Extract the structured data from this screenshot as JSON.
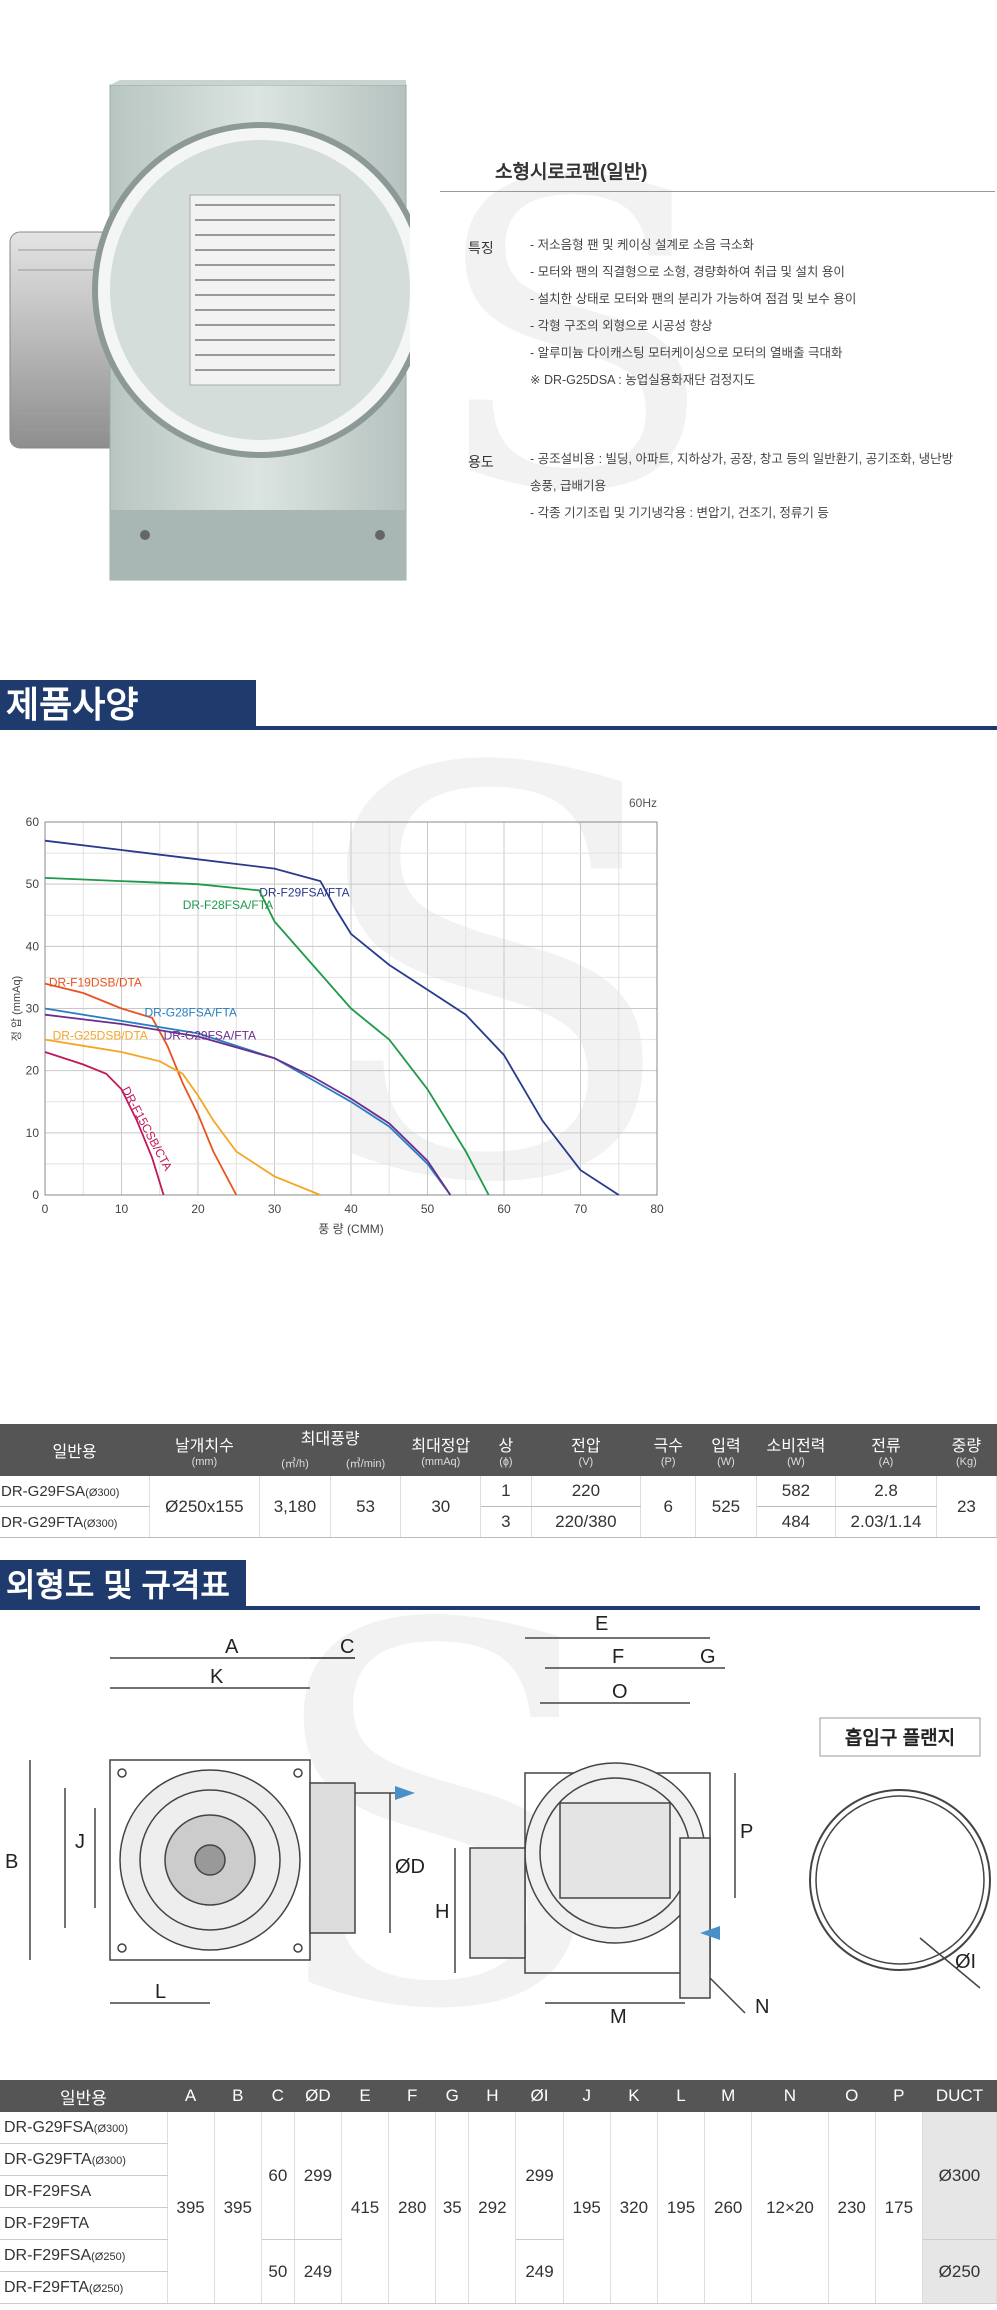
{
  "product": {
    "title": "소형시로코팬(일반)",
    "features_heading": "특징",
    "features": [
      "- 저소음형 팬 및 케이싱 설계로 소음 극소화",
      "- 모터와 팬의 직결형으로 소형, 경량화하여 취급 및 설치 용이",
      "- 설치한 상태로 모터와 팬의 분리가 가능하여 점검 및 보수 용이",
      "- 각형 구조의 외형으로 시공성 향상",
      "- 알루미늄 다이캐스팅 모터케이싱으로 모터의 열배출 극대화",
      "※ DR-G25DSA : 농업실용화재단 검정지도"
    ],
    "uses_heading": "용도",
    "uses": [
      "- 공조설비용 : 빌딩, 아파트, 지하상가, 공장, 창고 등의 일반환기, 공기조화, 냉난방",
      "송풍, 급배기용",
      "- 각종 기기조립 및 기기냉각용 : 변압기, 건조기, 정류기 등"
    ]
  },
  "sections": {
    "spec": "제품사양",
    "outline": "외형도 및 규격표"
  },
  "chart_data": {
    "type": "line",
    "title": "",
    "freq_label": "60Hz",
    "xlabel": "풍 량 (CMM)",
    "ylabel": "정 압 (mmAq)",
    "xlim": [
      0,
      80
    ],
    "ylim": [
      0,
      60
    ],
    "xticks": [
      0,
      10,
      20,
      30,
      40,
      50,
      60,
      70,
      80
    ],
    "yticks": [
      0,
      10,
      20,
      30,
      40,
      50,
      60
    ],
    "grid": true,
    "series": [
      {
        "name": "DR-F29FSA/FTA",
        "color": "#2a3a8c",
        "x": [
          0,
          10,
          20,
          30,
          36,
          38,
          40,
          45,
          50,
          55,
          60,
          65,
          70,
          75
        ],
        "y": [
          57,
          55.5,
          54,
          52.5,
          50.5,
          46,
          42,
          37,
          33,
          29,
          22.5,
          12,
          4,
          0
        ]
      },
      {
        "name": "DR-F28FSA/FTA",
        "color": "#1e9a4a",
        "x": [
          0,
          10,
          20,
          28,
          30,
          35,
          40,
          45,
          50,
          55,
          58
        ],
        "y": [
          51,
          50.5,
          50,
          49,
          44,
          37,
          30,
          25,
          17,
          7,
          0
        ]
      },
      {
        "name": "DR-F19DSB/DTA",
        "color": "#e8531f",
        "x": [
          0,
          5,
          10,
          14,
          16,
          18,
          20,
          22,
          25
        ],
        "y": [
          34,
          32.5,
          30,
          28.5,
          24,
          18,
          13,
          7,
          0
        ]
      },
      {
        "name": "DR-G28FSA/FTA",
        "color": "#2a7fc0",
        "x": [
          0,
          10,
          20,
          30,
          35,
          40,
          45,
          50,
          53
        ],
        "y": [
          30,
          28,
          26,
          22,
          18.5,
          15,
          11,
          5,
          0
        ]
      },
      {
        "name": "DR-G29FSA/FTA",
        "color": "#6a2f8e",
        "x": [
          0,
          10,
          20,
          30,
          35,
          40,
          45,
          50,
          53
        ],
        "y": [
          29,
          27.5,
          25.5,
          22,
          19,
          15.5,
          11.5,
          5.5,
          0
        ]
      },
      {
        "name": "DR-G25DSB/DTA",
        "color": "#f5a623",
        "x": [
          0,
          5,
          10,
          15,
          18,
          20,
          22,
          25,
          30,
          36
        ],
        "y": [
          25,
          24,
          23,
          21.5,
          19.5,
          16,
          12,
          7,
          3,
          0
        ]
      },
      {
        "name": "DR-F15CSB/CTA",
        "color": "#c2185b",
        "x": [
          0,
          5,
          8,
          10,
          12,
          14,
          15.5
        ],
        "y": [
          23,
          21,
          19.5,
          17,
          12,
          6,
          0
        ]
      }
    ]
  },
  "spec_table": {
    "headers": {
      "model": "일반용",
      "size": "날개치수",
      "size_unit": "(mm)",
      "maxflow": "최대풍량",
      "maxflow_u1": "(㎥/h)",
      "maxflow_u2": "(㎥/min)",
      "maxpress": "최대정압",
      "maxpress_u": "(mmAq)",
      "phase": "상",
      "phase_u": "(ɸ)",
      "voltage": "전압",
      "voltage_u": "(V)",
      "poles": "극수",
      "poles_u": "(P)",
      "input": "입력",
      "input_u": "(W)",
      "power": "소비전력",
      "power_u": "(W)",
      "current": "전류",
      "current_u": "(A)",
      "weight": "중량",
      "weight_u": "(Kg)"
    },
    "rows": [
      {
        "model": "DR-G29FSA",
        "duct": "(Ø300)",
        "phase": "1",
        "voltage": "220",
        "power": "582",
        "current": "2.8"
      },
      {
        "model": "DR-G29FTA",
        "duct": "(Ø300)",
        "phase": "3",
        "voltage": "220/380",
        "power": "484",
        "current": "2.03/1.14"
      }
    ],
    "shared": {
      "size": "Ø250x155",
      "flow_h": "3,180",
      "flow_min": "53",
      "press": "30",
      "poles": "6",
      "input": "525",
      "weight": "23"
    }
  },
  "drawing": {
    "flange_label": "흡입구 플랜지",
    "labels": [
      "A",
      "C",
      "K",
      "B",
      "J",
      "ØD",
      "L",
      "E",
      "F",
      "G",
      "O",
      "P",
      "H",
      "M",
      "N",
      "ØI"
    ]
  },
  "dim_table": {
    "headers": [
      "일반용",
      "A",
      "B",
      "C",
      "ØD",
      "E",
      "F",
      "G",
      "H",
      "ØI",
      "J",
      "K",
      "L",
      "M",
      "N",
      "O",
      "P",
      "DUCT"
    ],
    "models": [
      {
        "name": "DR-G29FSA",
        "duct": "(Ø300)"
      },
      {
        "name": "DR-G29FTA",
        "duct": "(Ø300)"
      },
      {
        "name": "DR-F29FSA",
        "duct": ""
      },
      {
        "name": "DR-F29FTA",
        "duct": ""
      },
      {
        "name": "DR-F29FSA",
        "duct": "(Ø250)"
      },
      {
        "name": "DR-F29FTA",
        "duct": "(Ø250)"
      }
    ],
    "values": {
      "A": "395",
      "B": "395",
      "C1": "60",
      "D1": "299",
      "C2": "50",
      "D2": "249",
      "E": "415",
      "F": "280",
      "G": "35",
      "H": "292",
      "I1": "299",
      "I2": "249",
      "J": "195",
      "K": "320",
      "L": "195",
      "M": "260",
      "N": "12×20",
      "O": "230",
      "P": "175",
      "DUCT1": "Ø300",
      "DUCT2": "Ø250"
    }
  }
}
